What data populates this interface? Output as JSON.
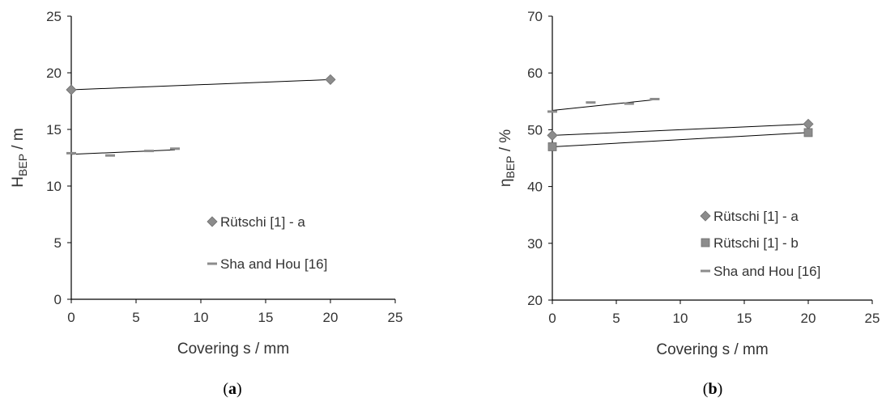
{
  "chart_data": [
    {
      "type": "scatter",
      "panel_label": "(a)",
      "xlabel": "Covering s / mm",
      "ylabel": {
        "main": "H",
        "sub": "BEP",
        "suffix": " / m"
      },
      "xlim": [
        0,
        25
      ],
      "ylim": [
        0,
        25
      ],
      "xticks": [
        "0",
        "5",
        "10",
        "15",
        "20",
        "25"
      ],
      "yticks": [
        "0",
        "5",
        "10",
        "15",
        "20",
        "25"
      ],
      "legend_position": "lower-right",
      "series": [
        {
          "name": "Rütschi [1] - a",
          "marker": "diamond",
          "color": "#8c8c8c",
          "x": [
            0,
            20
          ],
          "y": [
            18.5,
            19.4
          ],
          "fit": [
            [
              0,
              18.5
            ],
            [
              20,
              19.4
            ]
          ]
        },
        {
          "name": "Sha and Hou [16]",
          "marker": "dash",
          "color": "#8c8c8c",
          "x": [
            0,
            3,
            6,
            8
          ],
          "y": [
            12.9,
            12.7,
            13.1,
            13.3
          ],
          "fit": [
            [
              0,
              12.8
            ],
            [
              8,
              13.2
            ]
          ]
        }
      ]
    },
    {
      "type": "scatter",
      "panel_label": "(b)",
      "xlabel": "Covering s / mm",
      "ylabel": {
        "main": "η",
        "sub": "BEP",
        "suffix": " / %"
      },
      "xlim": [
        0,
        25
      ],
      "ylim": [
        20,
        70
      ],
      "xticks": [
        "0",
        "5",
        "10",
        "15",
        "20",
        "25"
      ],
      "yticks": [
        "20",
        "30",
        "40",
        "50",
        "60",
        "70"
      ],
      "legend_position": "lower-right",
      "series": [
        {
          "name": "Rütschi [1] - a",
          "marker": "diamond",
          "color": "#8c8c8c",
          "x": [
            0,
            20
          ],
          "y": [
            49,
            51
          ],
          "fit": [
            [
              0,
              49
            ],
            [
              20,
              51
            ]
          ]
        },
        {
          "name": "Rütschi [1] - b",
          "marker": "square",
          "color": "#8c8c8c",
          "x": [
            0,
            20
          ],
          "y": [
            47,
            49.5
          ],
          "fit": [
            [
              0,
              47
            ],
            [
              20,
              49.5
            ]
          ]
        },
        {
          "name": "Sha and Hou [16]",
          "marker": "dash",
          "color": "#8c8c8c",
          "x": [
            0,
            3,
            6,
            8
          ],
          "y": [
            53.2,
            54.8,
            54.6,
            55.4
          ],
          "fit": [
            [
              0,
              53.4
            ],
            [
              8,
              55.3
            ]
          ]
        }
      ]
    }
  ]
}
